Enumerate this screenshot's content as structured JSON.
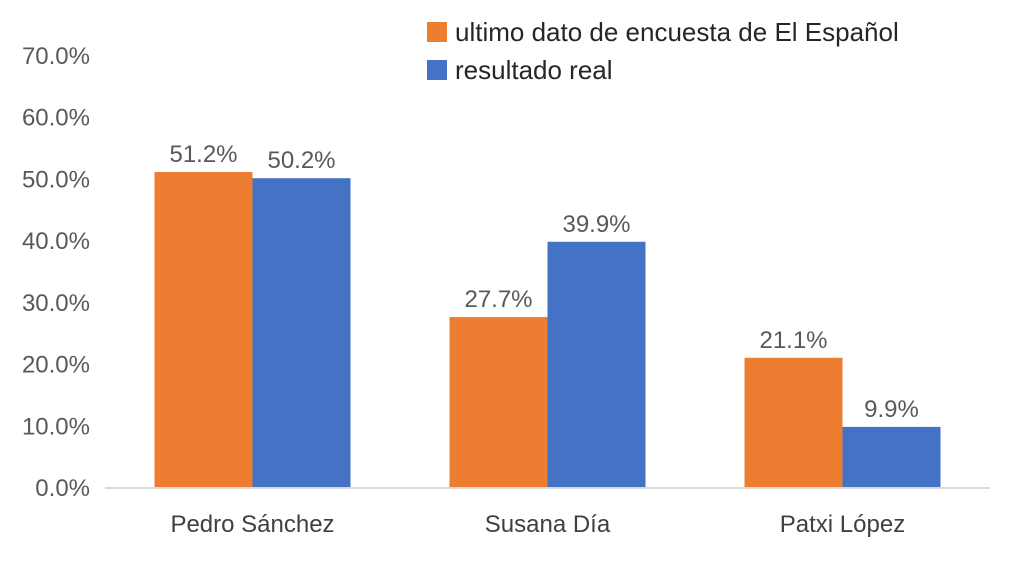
{
  "chart_data": {
    "type": "bar",
    "title": "",
    "xlabel": "",
    "ylabel": "",
    "categories": [
      "Pedro Sánchez",
      "Susana Día",
      "Patxi López"
    ],
    "series": [
      {
        "name": "ultimo dato de encuesta de El Español",
        "color": "#ED7D31",
        "values": [
          51.2,
          27.7,
          21.1
        ],
        "labels": [
          "51.2%",
          "27.7%",
          "21.1%"
        ]
      },
      {
        "name": "resultado real",
        "color": "#4472C4",
        "values": [
          50.2,
          39.9,
          9.9
        ],
        "labels": [
          "50.2%",
          "39.9%",
          "9.9%"
        ]
      }
    ],
    "ylim": [
      0,
      70
    ],
    "yticks": [
      0,
      10,
      20,
      30,
      40,
      50,
      60,
      70
    ],
    "ytick_labels": [
      "0.0%",
      "10.0%",
      "20.0%",
      "30.0%",
      "40.0%",
      "50.0%",
      "60.0%",
      "70.0%"
    ],
    "grid": false,
    "legend_position": "top-right"
  }
}
